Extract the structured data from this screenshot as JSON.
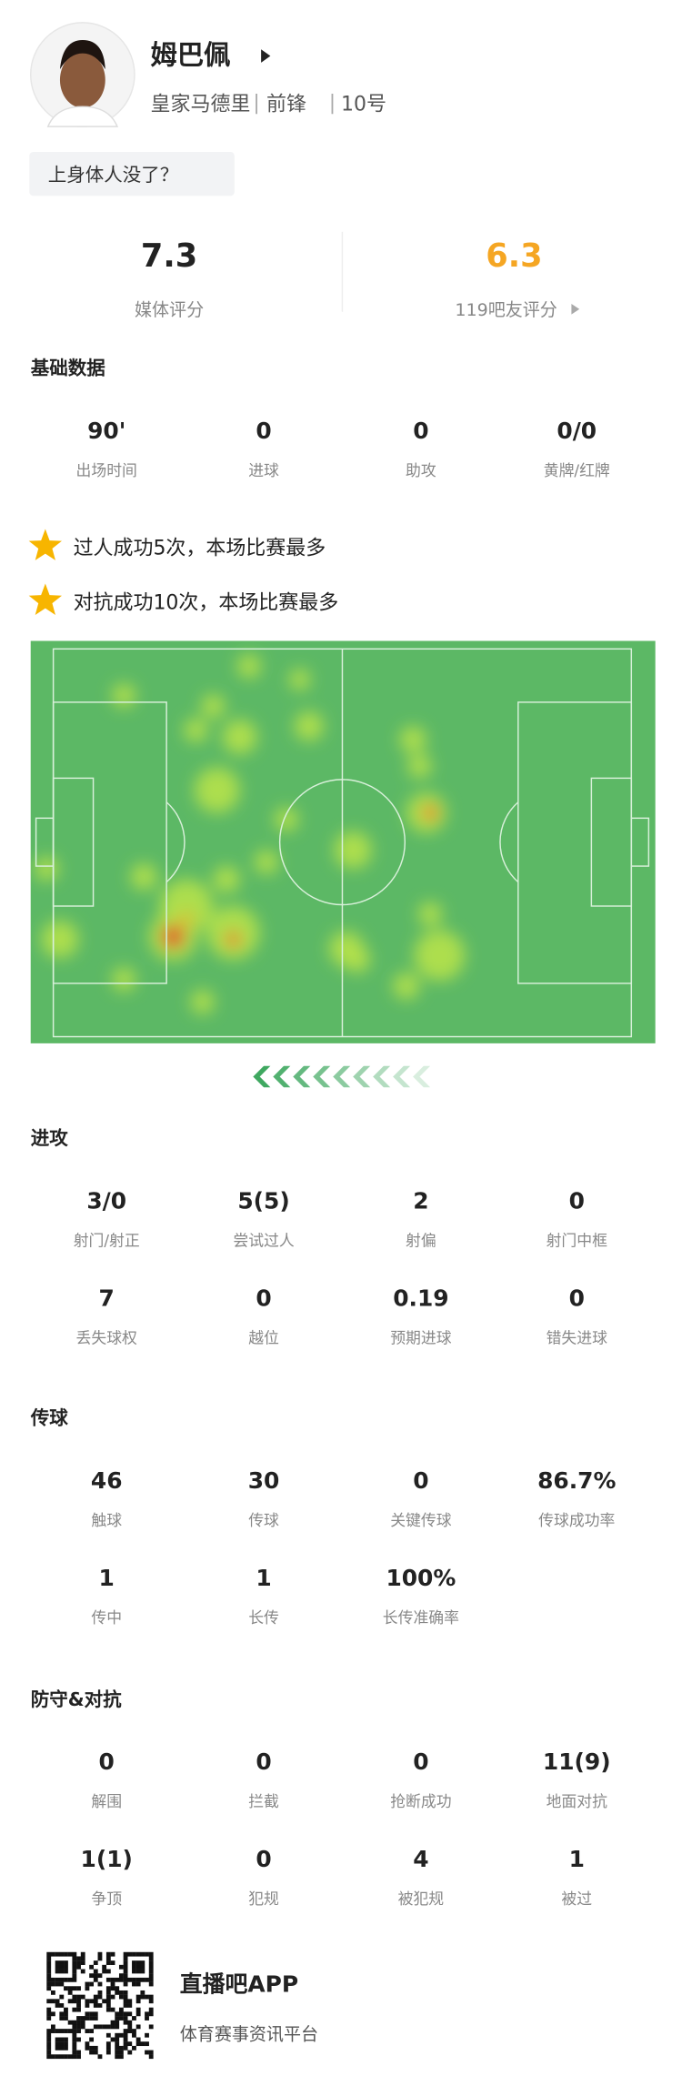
{
  "header": {
    "name": "姆巴佩",
    "team": "皇家马德里",
    "position": "前锋",
    "number": "10号",
    "comment": "上身体人没了？"
  },
  "ratings": [
    {
      "value": "7.3",
      "label": "媒体评分"
    },
    {
      "value": "6.3",
      "label": "119吧友评分"
    }
  ],
  "highlights": [
    "过人成功5次，本场比赛最多",
    "对抗成功10次，本场比赛最多"
  ],
  "sections": [
    {
      "title": "基础数据",
      "items": [
        {
          "value": "90'",
          "label": "出场时间"
        },
        {
          "value": "0",
          "label": "进球"
        },
        {
          "value": "0",
          "label": "助攻"
        },
        {
          "value": "0/0",
          "label": "黄牌/红牌"
        }
      ]
    },
    {
      "title": "进攻",
      "items": [
        {
          "value": "3/0",
          "label": "射门/射正"
        },
        {
          "value": "5(5)",
          "label": "尝试过人"
        },
        {
          "value": "2",
          "label": "射偏"
        },
        {
          "value": "0",
          "label": "射门中框"
        },
        {
          "value": "7",
          "label": "丢失球权"
        },
        {
          "value": "0",
          "label": "越位"
        },
        {
          "value": "0.19",
          "label": "预期进球"
        },
        {
          "value": "0",
          "label": "错失进球"
        }
      ]
    },
    {
      "title": "传球",
      "items": [
        {
          "value": "46",
          "label": "触球"
        },
        {
          "value": "30",
          "label": "传球"
        },
        {
          "value": "0",
          "label": "关键传球"
        },
        {
          "value": "86.7%",
          "label": "传球成功率"
        },
        {
          "value": "1",
          "label": "传中"
        },
        {
          "value": "1",
          "label": "长传"
        },
        {
          "value": "100%",
          "label": "长传准确率"
        }
      ]
    },
    {
      "title": "防守&对抗",
      "items": [
        {
          "value": "0",
          "label": "解围"
        },
        {
          "value": "0",
          "label": "拦截"
        },
        {
          "value": "0",
          "label": "抢断成功"
        },
        {
          "value": "11(9)",
          "label": "地面对抗"
        },
        {
          "value": "1(1)",
          "label": "争顶"
        },
        {
          "value": "0",
          "label": "犯规"
        },
        {
          "value": "4",
          "label": "被犯规"
        },
        {
          "value": "1",
          "label": "被过"
        }
      ]
    }
  ],
  "footer": {
    "app": "直播吧APP",
    "slogan": "体育赛事资讯平台"
  }
}
